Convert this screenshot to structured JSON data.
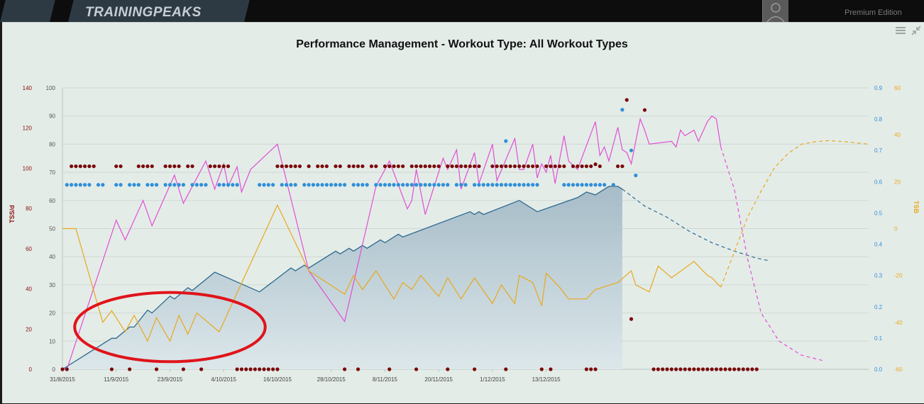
{
  "header": {
    "brand": "TRAININGPEAKS",
    "edition": "Premium Edition"
  },
  "icons": {
    "menu": "menu-icon",
    "expand": "expand-icon",
    "avatar": "avatar-icon"
  },
  "colors": {
    "ctl_line": "#2e6a8e",
    "ctl_fill": "#bccdd6",
    "atl": "#e04fd5",
    "tsb": "#e8a81c",
    "tss_dots": "#7a0b0b",
    "if_dots": "#2f8fd8",
    "highlight": "#e0141a"
  },
  "chart_data": {
    "type": "line",
    "title": "Performance Management - Workout Type: All Workout Types",
    "x_ticks": [
      "31/8/2015",
      "11/9/2015",
      "23/9/2015",
      "4/10/2015",
      "16/10/2015",
      "28/10/2015",
      "8/11/2015",
      "20/11/2015",
      "1/12/2015",
      "13/12/2015"
    ],
    "axes": {
      "tss_left": {
        "label": "TSS/d",
        "ticks": [
          "140",
          "120",
          "100",
          "80",
          "60",
          "40",
          "20",
          "0"
        ],
        "range": [
          0,
          140
        ]
      },
      "fitness_left": {
        "ticks": [
          "100",
          "90",
          "80",
          "70",
          "60",
          "50",
          "40",
          "30",
          "20",
          "10",
          "0"
        ],
        "range": [
          0,
          100
        ]
      },
      "if_right": {
        "ticks": [
          "0.9",
          "0.8",
          "0.7",
          "0.6",
          "0.5",
          "0.4",
          "0.3",
          "0.2",
          "0.1",
          "0.0"
        ],
        "range": [
          0,
          0.9
        ]
      },
      "tsb_right": {
        "label": "TSB",
        "ticks": [
          "60",
          "40",
          "20",
          "0",
          "-20",
          "-40",
          "-60"
        ],
        "range": [
          -60,
          60
        ]
      }
    },
    "series": [
      {
        "axis": "fitness_left",
        "style": "area",
        "points": [
          [
            0,
            0
          ],
          [
            11,
            11
          ],
          [
            12,
            11
          ],
          [
            15,
            15
          ],
          [
            16,
            15
          ],
          [
            19,
            21
          ],
          [
            20,
            20
          ],
          [
            24,
            26
          ],
          [
            25,
            25
          ],
          [
            28,
            29
          ],
          [
            29,
            28
          ],
          [
            34,
            34.5
          ],
          [
            44,
            27.5
          ],
          [
            51,
            36
          ],
          [
            52,
            35
          ],
          [
            54,
            37
          ],
          [
            55,
            36
          ],
          [
            61,
            42
          ],
          [
            62,
            41
          ],
          [
            64,
            43
          ],
          [
            65,
            42
          ],
          [
            67,
            44
          ],
          [
            68,
            43
          ],
          [
            71,
            46
          ],
          [
            72,
            45
          ],
          [
            75,
            48
          ],
          [
            76,
            47
          ],
          [
            91,
            56
          ],
          [
            92,
            55
          ],
          [
            93,
            56
          ],
          [
            94,
            55
          ],
          [
            102,
            60
          ],
          [
            106,
            56
          ],
          [
            115,
            61
          ],
          [
            116,
            62
          ],
          [
            117,
            63
          ],
          [
            118,
            62.5
          ],
          [
            119,
            62
          ],
          [
            120,
            63
          ],
          [
            121,
            64
          ],
          [
            122,
            65
          ],
          [
            124,
            65
          ],
          [
            125,
            64
          ]
        ]
      },
      {
        "axis": "fitness_left",
        "style": "dashed",
        "points": [
          [
            125,
            64
          ],
          [
            130,
            58
          ],
          [
            135,
            54
          ],
          [
            140,
            49
          ],
          [
            145,
            45
          ],
          [
            150,
            42
          ],
          [
            155,
            39.5
          ],
          [
            158,
            38.5
          ]
        ]
      },
      {
        "axis": "fitness_left",
        "style": "solid",
        "points": [
          [
            0,
            0
          ],
          [
            1,
            0
          ],
          [
            12,
            53
          ],
          [
            14,
            46
          ],
          [
            18,
            60
          ],
          [
            20,
            51
          ],
          [
            25,
            69
          ],
          [
            27,
            59
          ],
          [
            32,
            74
          ],
          [
            34,
            64
          ],
          [
            36,
            73
          ],
          [
            37,
            65
          ],
          [
            39,
            72
          ],
          [
            40,
            63
          ],
          [
            42,
            71
          ],
          [
            48,
            80
          ],
          [
            55,
            35
          ],
          [
            63,
            17
          ],
          [
            70,
            65
          ],
          [
            73,
            74
          ],
          [
            77,
            57
          ],
          [
            78,
            60
          ],
          [
            79,
            71
          ],
          [
            81,
            55
          ],
          [
            85,
            75
          ],
          [
            86,
            71
          ],
          [
            88,
            78
          ],
          [
            89,
            64
          ],
          [
            92,
            77
          ],
          [
            93,
            66
          ],
          [
            96,
            80
          ],
          [
            97,
            67
          ],
          [
            101,
            82
          ],
          [
            102,
            71
          ],
          [
            103,
            71
          ],
          [
            105,
            80
          ],
          [
            106,
            68
          ],
          [
            107,
            73
          ],
          [
            108,
            70
          ],
          [
            109,
            76
          ],
          [
            110,
            66
          ],
          [
            112,
            83
          ],
          [
            113,
            74
          ],
          [
            115,
            71
          ],
          [
            119,
            88
          ],
          [
            120,
            76
          ],
          [
            121,
            79
          ],
          [
            122,
            74
          ],
          [
            124,
            86
          ],
          [
            125,
            78
          ],
          [
            126,
            77
          ],
          [
            127,
            73
          ],
          [
            129,
            89
          ],
          [
            130,
            85
          ],
          [
            131,
            80
          ],
          [
            136,
            81
          ],
          [
            137,
            79
          ],
          [
            138,
            85
          ],
          [
            139,
            83
          ],
          [
            141,
            85
          ],
          [
            142,
            81
          ],
          [
            144,
            88
          ],
          [
            145,
            90
          ],
          [
            146,
            89
          ],
          [
            147,
            79
          ]
        ]
      },
      {
        "axis": "fitness_left",
        "style": "dashed",
        "points": [
          [
            147,
            79
          ],
          [
            150,
            64
          ],
          [
            153,
            39
          ],
          [
            156,
            20
          ],
          [
            160,
            10
          ],
          [
            165,
            5
          ],
          [
            170,
            3
          ]
        ]
      },
      {
        "axis": "tsb_right",
        "style": "solid",
        "points": [
          [
            0,
            0
          ],
          [
            3,
            0
          ],
          [
            9,
            -40
          ],
          [
            11,
            -35
          ],
          [
            14,
            -44
          ],
          [
            16,
            -37
          ],
          [
            19,
            -48
          ],
          [
            21,
            -38
          ],
          [
            24,
            -48
          ],
          [
            26,
            -37
          ],
          [
            28,
            -45
          ],
          [
            30,
            -36
          ],
          [
            35,
            -44
          ],
          [
            48,
            10
          ],
          [
            55,
            -18
          ],
          [
            63,
            -28
          ],
          [
            65,
            -20
          ],
          [
            67,
            -26
          ],
          [
            70,
            -18
          ],
          [
            74,
            -30
          ],
          [
            76,
            -23
          ],
          [
            78,
            -26
          ],
          [
            80,
            -20
          ],
          [
            84,
            -29
          ],
          [
            86,
            -21
          ],
          [
            89,
            -30
          ],
          [
            92,
            -21
          ],
          [
            96,
            -32
          ],
          [
            98,
            -24
          ],
          [
            101,
            -32
          ],
          [
            102,
            -20
          ],
          [
            105,
            -23
          ],
          [
            107,
            -33
          ],
          [
            108,
            -19
          ],
          [
            111,
            -25
          ],
          [
            113,
            -30
          ],
          [
            117,
            -30
          ],
          [
            119,
            -26
          ],
          [
            124,
            -23
          ],
          [
            127,
            -18
          ],
          [
            128,
            -24
          ],
          [
            131,
            -27
          ],
          [
            133,
            -16
          ],
          [
            136,
            -21
          ],
          [
            141,
            -14
          ],
          [
            144,
            -20
          ],
          [
            145,
            -21
          ],
          [
            147,
            -25
          ]
        ]
      },
      {
        "axis": "tsb_right",
        "style": "dashed",
        "points": [
          [
            147,
            -25
          ],
          [
            150,
            -10
          ],
          [
            153,
            5
          ],
          [
            156,
            16
          ],
          [
            159,
            26
          ],
          [
            162,
            32
          ],
          [
            165,
            36
          ],
          [
            168,
            37
          ],
          [
            171,
            37.5
          ],
          [
            175,
            37
          ],
          [
            180,
            36
          ]
        ]
      }
    ],
    "tss_dots": [
      {
        "value": 0,
        "x": [
          0,
          1,
          11,
          15,
          21,
          27,
          31,
          39,
          40,
          41,
          42,
          43,
          44,
          45,
          46,
          47,
          48,
          63,
          66,
          73,
          79,
          86,
          92,
          99,
          107,
          109,
          117,
          118,
          119,
          132,
          133,
          134,
          135,
          136,
          137,
          138,
          139,
          140,
          141,
          142,
          143,
          144,
          145,
          146,
          147,
          148,
          149,
          150,
          151,
          152,
          153,
          154,
          155
        ]
      },
      {
        "value": 101,
        "x": [
          2,
          3,
          4,
          5,
          6,
          7,
          12,
          13,
          17,
          18,
          19,
          20,
          23,
          24,
          25,
          26,
          28,
          29,
          33,
          34,
          35,
          36,
          37,
          48,
          49,
          50,
          51,
          52,
          53,
          55,
          57,
          58,
          59,
          61,
          62,
          64,
          65,
          66,
          67,
          69,
          70,
          72,
          73,
          74,
          75,
          76,
          78,
          79,
          80,
          81,
          82,
          83,
          84,
          86,
          87,
          88,
          89,
          90,
          91,
          92,
          93,
          96,
          97,
          98,
          99,
          100,
          101,
          102,
          103,
          104,
          105,
          106,
          108,
          109,
          110,
          111,
          112,
          114,
          115,
          116,
          117,
          118,
          120,
          124,
          125
        ]
      },
      {
        "value": 102,
        "x": [
          119
        ]
      },
      {
        "value": 134,
        "x": [
          126
        ]
      },
      {
        "value": 129,
        "x": [
          130
        ]
      },
      {
        "value": 25,
        "x": [
          127
        ]
      }
    ],
    "if_dots": [
      {
        "value": 0.59,
        "x": [
          1,
          2,
          3,
          4,
          5,
          6,
          8,
          9,
          12,
          13,
          15,
          16,
          17,
          19,
          20,
          21,
          23,
          24,
          25,
          26,
          27,
          29,
          30,
          31,
          32,
          35,
          36,
          37,
          38,
          39,
          44,
          45,
          46,
          47,
          49,
          50,
          51,
          52,
          54,
          55,
          56,
          57,
          58,
          59,
          60,
          61,
          62,
          63,
          65,
          66,
          67,
          68,
          70,
          71,
          72,
          73,
          74,
          75,
          76,
          77,
          78,
          79,
          80,
          81,
          82,
          83,
          84,
          85,
          86,
          88,
          89,
          90,
          92,
          93,
          94,
          95,
          96,
          97,
          98,
          99,
          100,
          101,
          102,
          103,
          104,
          105,
          106,
          112,
          113,
          114,
          115,
          116,
          117,
          118,
          119,
          120,
          121,
          123
        ]
      },
      {
        "value": 0.83,
        "x": [
          125
        ]
      },
      {
        "value": 0.7,
        "x": [
          127
        ]
      },
      {
        "value": 0.62,
        "x": [
          128
        ]
      },
      {
        "value": 0.73,
        "x": [
          99
        ]
      }
    ],
    "highlight_ellipse_range": {
      "x": [
        4,
        44
      ],
      "y": [
        10,
        22
      ]
    },
    "grid": true
  }
}
